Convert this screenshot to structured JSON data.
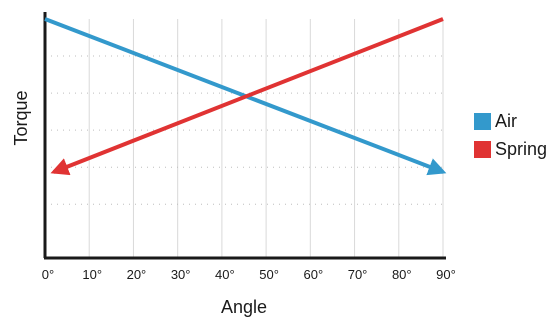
{
  "chart_data": {
    "type": "line",
    "xlabel": "Angle",
    "ylabel": "Torque",
    "x_ticks": [
      "0°",
      "10°",
      "20°",
      "30°",
      "40°",
      "50°",
      "60°",
      "70°",
      "80°",
      "90°"
    ],
    "xlim": [
      0,
      90
    ],
    "ylim": [
      0,
      100
    ],
    "grid": true,
    "legend_position": "right",
    "series": [
      {
        "name": "Air",
        "color": "#3399cc",
        "x": [
          0,
          90
        ],
        "y": [
          100,
          36
        ],
        "arrow": "end"
      },
      {
        "name": "Spring",
        "color": "#e03333",
        "x": [
          90,
          2
        ],
        "y": [
          100,
          36
        ],
        "arrow": "end"
      }
    ]
  }
}
